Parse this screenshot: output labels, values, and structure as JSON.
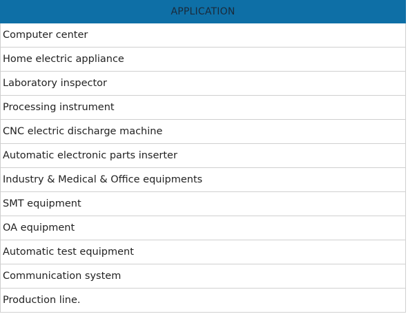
{
  "table": {
    "header": "APPLICATION",
    "rows": [
      "Computer center",
      "Home electric appliance",
      "Laboratory inspector",
      "Processing instrument",
      "CNC electric discharge machine",
      "Automatic electronic parts inserter",
      "Industry & Medical & Office equipments",
      "SMT equipment",
      "OA equipment",
      "Automatic test equipment",
      "Communication system",
      "Production line."
    ]
  },
  "colors": {
    "header_background": "#0e6fa6",
    "header_text": "#1a2a3a",
    "row_border": "#cfcfcf"
  }
}
